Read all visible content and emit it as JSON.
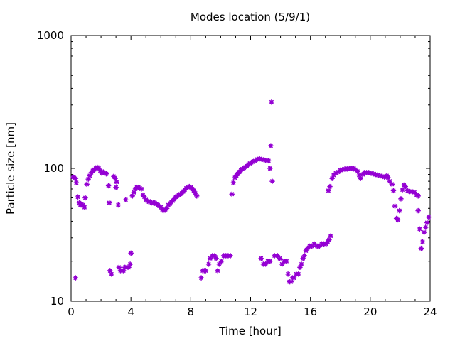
{
  "chart_data": {
    "type": "scatter",
    "title": "Modes location (5/9/1)",
    "xlabel": "Time [hour]",
    "ylabel": "Particle size [nm]",
    "xlim": [
      0,
      24
    ],
    "ylim": [
      10,
      1000
    ],
    "yscale": "log",
    "grid": false,
    "x_ticks": [
      0,
      4,
      8,
      12,
      16,
      20,
      24
    ],
    "x_tick_labels": [
      "0",
      "4",
      "8",
      "12",
      "16",
      "20",
      "24"
    ],
    "y_ticks": [
      10,
      100,
      1000
    ],
    "y_tick_labels": [
      "10",
      "100",
      "1000"
    ],
    "marker_color": "#9400D3",
    "marker": "asterisk",
    "points": [
      [
        0.15,
        86
      ],
      [
        0.3,
        84
      ],
      [
        0.35,
        78
      ],
      [
        0.3,
        15
      ],
      [
        0.45,
        61
      ],
      [
        0.55,
        55
      ],
      [
        0.62,
        53
      ],
      [
        0.7,
        53
      ],
      [
        0.8,
        53
      ],
      [
        0.9,
        51
      ],
      [
        0.95,
        60
      ],
      [
        1.05,
        76
      ],
      [
        1.15,
        83
      ],
      [
        1.25,
        88
      ],
      [
        1.35,
        93
      ],
      [
        1.45,
        96
      ],
      [
        1.55,
        98
      ],
      [
        1.65,
        100
      ],
      [
        1.75,
        102
      ],
      [
        1.85,
        100
      ],
      [
        1.95,
        96
      ],
      [
        2.05,
        92
      ],
      [
        2.15,
        94
      ],
      [
        2.25,
        92
      ],
      [
        2.35,
        91
      ],
      [
        2.5,
        74
      ],
      [
        2.55,
        55
      ],
      [
        2.6,
        17
      ],
      [
        2.7,
        16
      ],
      [
        2.85,
        87
      ],
      [
        2.95,
        84
      ],
      [
        3.0,
        72
      ],
      [
        3.05,
        79
      ],
      [
        3.15,
        53
      ],
      [
        3.2,
        18
      ],
      [
        3.3,
        17
      ],
      [
        3.4,
        17
      ],
      [
        3.5,
        17
      ],
      [
        3.6,
        18
      ],
      [
        3.65,
        58
      ],
      [
        3.75,
        18
      ],
      [
        3.85,
        18
      ],
      [
        3.95,
        19
      ],
      [
        4.0,
        23
      ],
      [
        4.1,
        62
      ],
      [
        4.2,
        66
      ],
      [
        4.3,
        70
      ],
      [
        4.4,
        72
      ],
      [
        4.5,
        72
      ],
      [
        4.6,
        71
      ],
      [
        4.7,
        70
      ],
      [
        4.8,
        63
      ],
      [
        4.9,
        61
      ],
      [
        5.0,
        58
      ],
      [
        5.1,
        57
      ],
      [
        5.2,
        56
      ],
      [
        5.3,
        56
      ],
      [
        5.4,
        55
      ],
      [
        5.5,
        55
      ],
      [
        5.6,
        55
      ],
      [
        5.7,
        54
      ],
      [
        5.8,
        53
      ],
      [
        5.9,
        52
      ],
      [
        6.0,
        51
      ],
      [
        6.1,
        49
      ],
      [
        6.2,
        48
      ],
      [
        6.3,
        49
      ],
      [
        6.4,
        50
      ],
      [
        6.5,
        53
      ],
      [
        6.6,
        54
      ],
      [
        6.7,
        56
      ],
      [
        6.8,
        57
      ],
      [
        6.9,
        59
      ],
      [
        7.0,
        61
      ],
      [
        7.1,
        62
      ],
      [
        7.2,
        63
      ],
      [
        7.3,
        64
      ],
      [
        7.4,
        65
      ],
      [
        7.5,
        67
      ],
      [
        7.6,
        69
      ],
      [
        7.7,
        71
      ],
      [
        7.8,
        72
      ],
      [
        7.9,
        73
      ],
      [
        8.0,
        72
      ],
      [
        8.1,
        70
      ],
      [
        8.2,
        68
      ],
      [
        8.3,
        65
      ],
      [
        8.4,
        62
      ],
      [
        8.7,
        15
      ],
      [
        8.8,
        17
      ],
      [
        8.9,
        17
      ],
      [
        9.0,
        17
      ],
      [
        9.2,
        19
      ],
      [
        9.3,
        21
      ],
      [
        9.45,
        22
      ],
      [
        9.6,
        22
      ],
      [
        9.7,
        21
      ],
      [
        9.8,
        17
      ],
      [
        9.9,
        19
      ],
      [
        10.05,
        20
      ],
      [
        10.2,
        22
      ],
      [
        10.35,
        22
      ],
      [
        10.5,
        22
      ],
      [
        10.65,
        22
      ],
      [
        10.75,
        64
      ],
      [
        10.85,
        78
      ],
      [
        10.95,
        85
      ],
      [
        11.05,
        88
      ],
      [
        11.15,
        91
      ],
      [
        11.25,
        94
      ],
      [
        11.35,
        97
      ],
      [
        11.45,
        99
      ],
      [
        11.55,
        101
      ],
      [
        11.65,
        102
      ],
      [
        11.75,
        104
      ],
      [
        11.85,
        107
      ],
      [
        11.95,
        109
      ],
      [
        12.05,
        111
      ],
      [
        12.15,
        112
      ],
      [
        12.3,
        114
      ],
      [
        12.45,
        117
      ],
      [
        12.6,
        118
      ],
      [
        12.75,
        117
      ],
      [
        12.9,
        116
      ],
      [
        13.0,
        115
      ],
      [
        13.1,
        115
      ],
      [
        13.2,
        114
      ],
      [
        13.3,
        100
      ],
      [
        13.35,
        148
      ],
      [
        13.4,
        315
      ],
      [
        13.45,
        80
      ],
      [
        12.7,
        21
      ],
      [
        12.85,
        19
      ],
      [
        13.0,
        19
      ],
      [
        13.15,
        20
      ],
      [
        13.3,
        20
      ],
      [
        13.6,
        22
      ],
      [
        13.8,
        22
      ],
      [
        13.95,
        21
      ],
      [
        14.1,
        19
      ],
      [
        14.25,
        20
      ],
      [
        14.4,
        20
      ],
      [
        14.5,
        16
      ],
      [
        14.6,
        14
      ],
      [
        14.7,
        14
      ],
      [
        14.8,
        15
      ],
      [
        14.9,
        15
      ],
      [
        15.05,
        16
      ],
      [
        15.2,
        16
      ],
      [
        15.3,
        18
      ],
      [
        15.4,
        19
      ],
      [
        15.5,
        21
      ],
      [
        15.6,
        22
      ],
      [
        15.7,
        24
      ],
      [
        15.8,
        25
      ],
      [
        15.95,
        26
      ],
      [
        16.1,
        26
      ],
      [
        16.25,
        27
      ],
      [
        16.45,
        26
      ],
      [
        16.6,
        26
      ],
      [
        16.75,
        27
      ],
      [
        16.9,
        27
      ],
      [
        17.05,
        27
      ],
      [
        17.15,
        28
      ],
      [
        17.25,
        29
      ],
      [
        17.35,
        31
      ],
      [
        17.2,
        68
      ],
      [
        17.3,
        73
      ],
      [
        17.45,
        84
      ],
      [
        17.55,
        89
      ],
      [
        17.7,
        92
      ],
      [
        17.85,
        94
      ],
      [
        18.0,
        97
      ],
      [
        18.15,
        98
      ],
      [
        18.3,
        99
      ],
      [
        18.45,
        99
      ],
      [
        18.6,
        100
      ],
      [
        18.75,
        100
      ],
      [
        18.9,
        100
      ],
      [
        19.0,
        98
      ],
      [
        19.15,
        95
      ],
      [
        19.25,
        89
      ],
      [
        19.35,
        84
      ],
      [
        19.5,
        90
      ],
      [
        19.6,
        93
      ],
      [
        19.75,
        93
      ],
      [
        19.9,
        93
      ],
      [
        20.05,
        92
      ],
      [
        20.2,
        91
      ],
      [
        20.35,
        90
      ],
      [
        20.5,
        89
      ],
      [
        20.65,
        88
      ],
      [
        20.8,
        87
      ],
      [
        20.95,
        86
      ],
      [
        21.1,
        88
      ],
      [
        21.2,
        85
      ],
      [
        21.3,
        80
      ],
      [
        21.45,
        76
      ],
      [
        21.55,
        68
      ],
      [
        21.65,
        52
      ],
      [
        21.75,
        42
      ],
      [
        21.85,
        41
      ],
      [
        21.95,
        48
      ],
      [
        22.05,
        59
      ],
      [
        22.15,
        69
      ],
      [
        22.25,
        75
      ],
      [
        22.35,
        73
      ],
      [
        22.5,
        68
      ],
      [
        22.65,
        67
      ],
      [
        22.8,
        67
      ],
      [
        22.95,
        66
      ],
      [
        23.1,
        63
      ],
      [
        23.2,
        48
      ],
      [
        23.3,
        35
      ],
      [
        23.4,
        25
      ],
      [
        23.5,
        28
      ],
      [
        23.6,
        33
      ],
      [
        23.7,
        36
      ],
      [
        23.8,
        39
      ],
      [
        23.9,
        43
      ],
      [
        23.2,
        62
      ]
    ]
  }
}
